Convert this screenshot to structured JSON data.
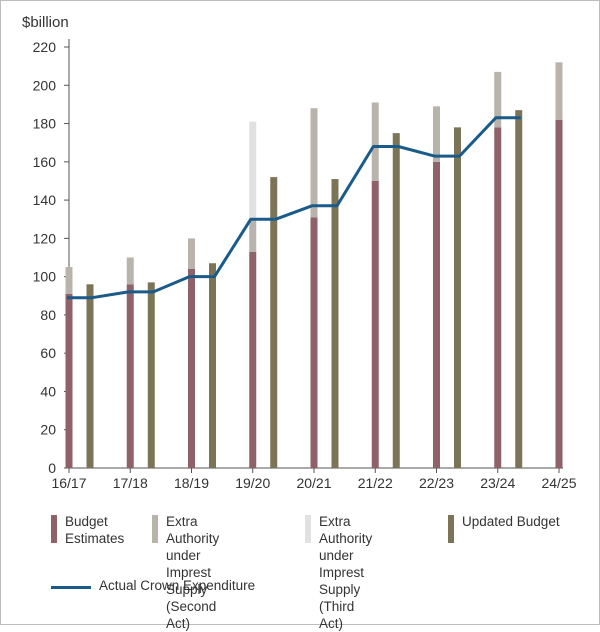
{
  "chart_data": {
    "type": "bar",
    "ylabel": "$billion",
    "ylim": [
      0,
      220
    ],
    "yticks": [
      0,
      20,
      40,
      60,
      80,
      100,
      120,
      140,
      160,
      180,
      200,
      220
    ],
    "categories": [
      "16/17",
      "17/18",
      "18/19",
      "19/20",
      "20/21",
      "21/22",
      "22/23",
      "23/24",
      "24/25"
    ],
    "stacked_series": [
      {
        "name": "Budget\nEstimates",
        "color": "#8f6168",
        "values": [
          91,
          96,
          104,
          113,
          131,
          150,
          160,
          178,
          182
        ]
      },
      {
        "name": "Extra Authority\nunder Imprest\nSupply (Second Act)",
        "color": "#b8b3ab",
        "values": [
          14,
          14,
          16,
          17,
          57,
          41,
          29,
          29,
          30
        ]
      },
      {
        "name": "Extra Authority\nunder Imprest\nSupply (Third Act)",
        "color": "#e1e1e1",
        "values": [
          0,
          0,
          0,
          51,
          0,
          0,
          0,
          0,
          0
        ]
      }
    ],
    "updated_budget": {
      "name": "Updated Budget",
      "color": "#7c7457",
      "values": [
        96,
        97,
        107,
        152,
        151,
        175,
        178,
        187,
        null
      ]
    },
    "actual_line": {
      "name": "Actual Crown Expenditure",
      "color": "#1a5b8a",
      "values": [
        89,
        92,
        100,
        130,
        137,
        168,
        163,
        183,
        null
      ]
    },
    "grid": false,
    "legend_position": "bottom"
  }
}
